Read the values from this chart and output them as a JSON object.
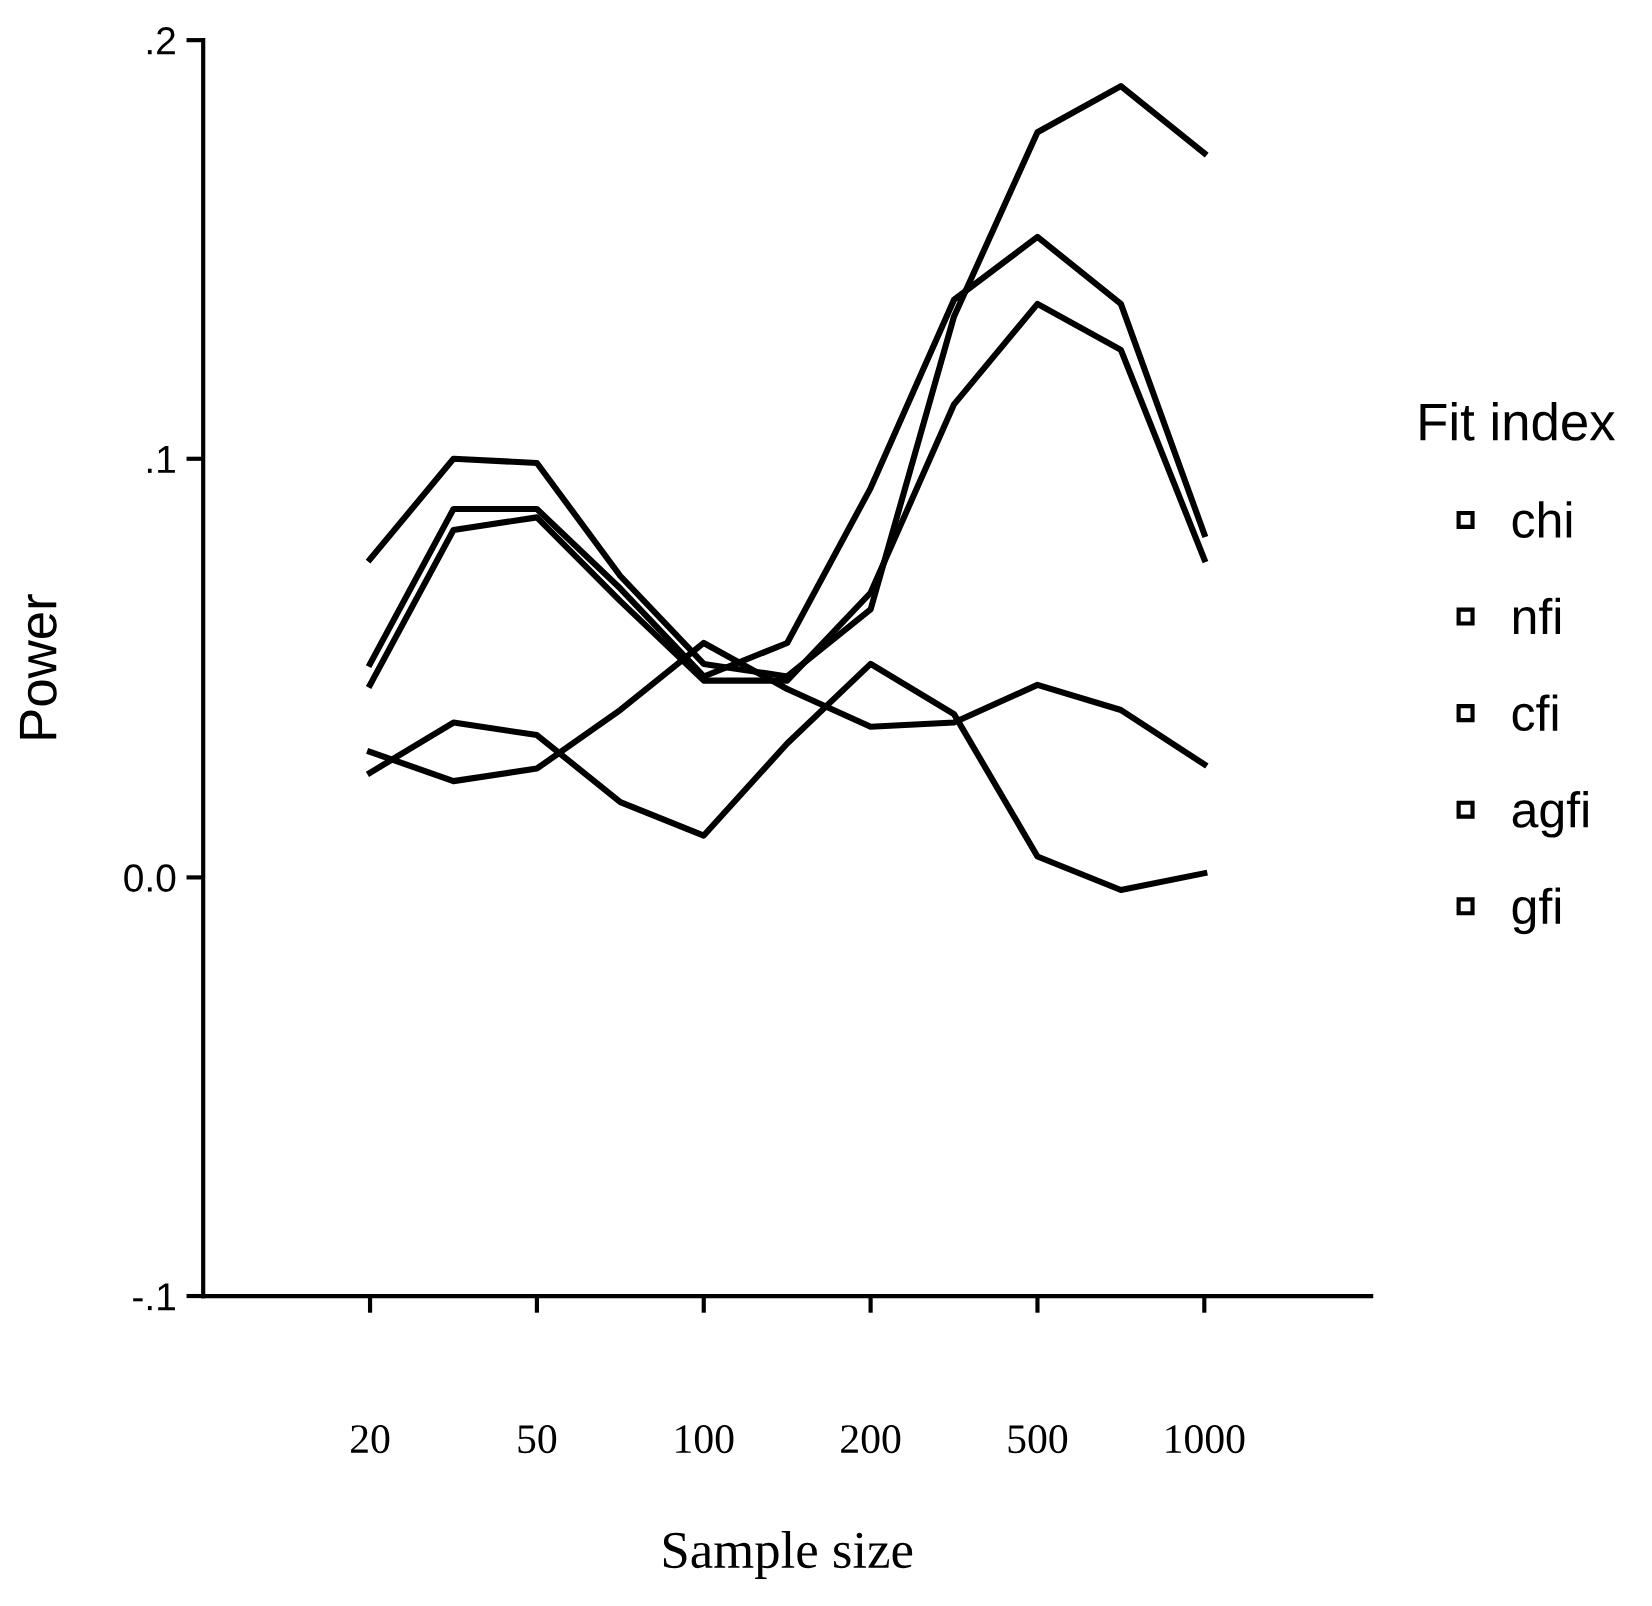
{
  "chart_data": {
    "type": "line",
    "xlabel": "Sample size",
    "ylabel": "Power",
    "legend_title": "Fit index",
    "categories": [
      "20",
      null,
      "50",
      null,
      "100",
      null,
      "200",
      null,
      "500",
      null,
      "1000"
    ],
    "series": [
      {
        "name": "chi",
        "color": "#000000",
        "values": [
          0.076,
          0.1,
          0.099,
          0.072,
          0.051,
          0.048,
          0.064,
          0.134,
          0.178,
          0.189,
          0.173
        ]
      },
      {
        "name": "nfi",
        "color": "#000000",
        "values": [
          0.051,
          0.088,
          0.088,
          0.069,
          0.048,
          0.056,
          0.093,
          0.138,
          0.153,
          0.137,
          0.082
        ]
      },
      {
        "name": "cfi",
        "color": "#000000",
        "values": [
          0.046,
          0.083,
          0.086,
          0.066,
          0.047,
          0.047,
          0.068,
          0.113,
          0.137,
          0.126,
          0.076
        ]
      },
      {
        "name": "agfi",
        "color": "#000000",
        "values": [
          0.03,
          0.023,
          0.026,
          0.04,
          0.056,
          0.045,
          0.036,
          0.037,
          0.046,
          0.04,
          0.027
        ]
      },
      {
        "name": "gfi",
        "color": "#000000",
        "values": [
          0.025,
          0.037,
          0.034,
          0.018,
          0.01,
          0.032,
          0.051,
          0.039,
          0.005,
          -0.003,
          0.001
        ]
      }
    ],
    "ylim": [
      -0.1,
      0.2
    ],
    "yticks": [
      {
        "value": -0.1,
        "label": "-.1"
      },
      {
        "value": 0.0,
        "label": "0.0"
      },
      {
        "value": 0.1,
        "label": ".1"
      },
      {
        "value": 0.2,
        "label": ".2"
      }
    ],
    "grid": false,
    "legend": "right",
    "line_style": "solid"
  }
}
